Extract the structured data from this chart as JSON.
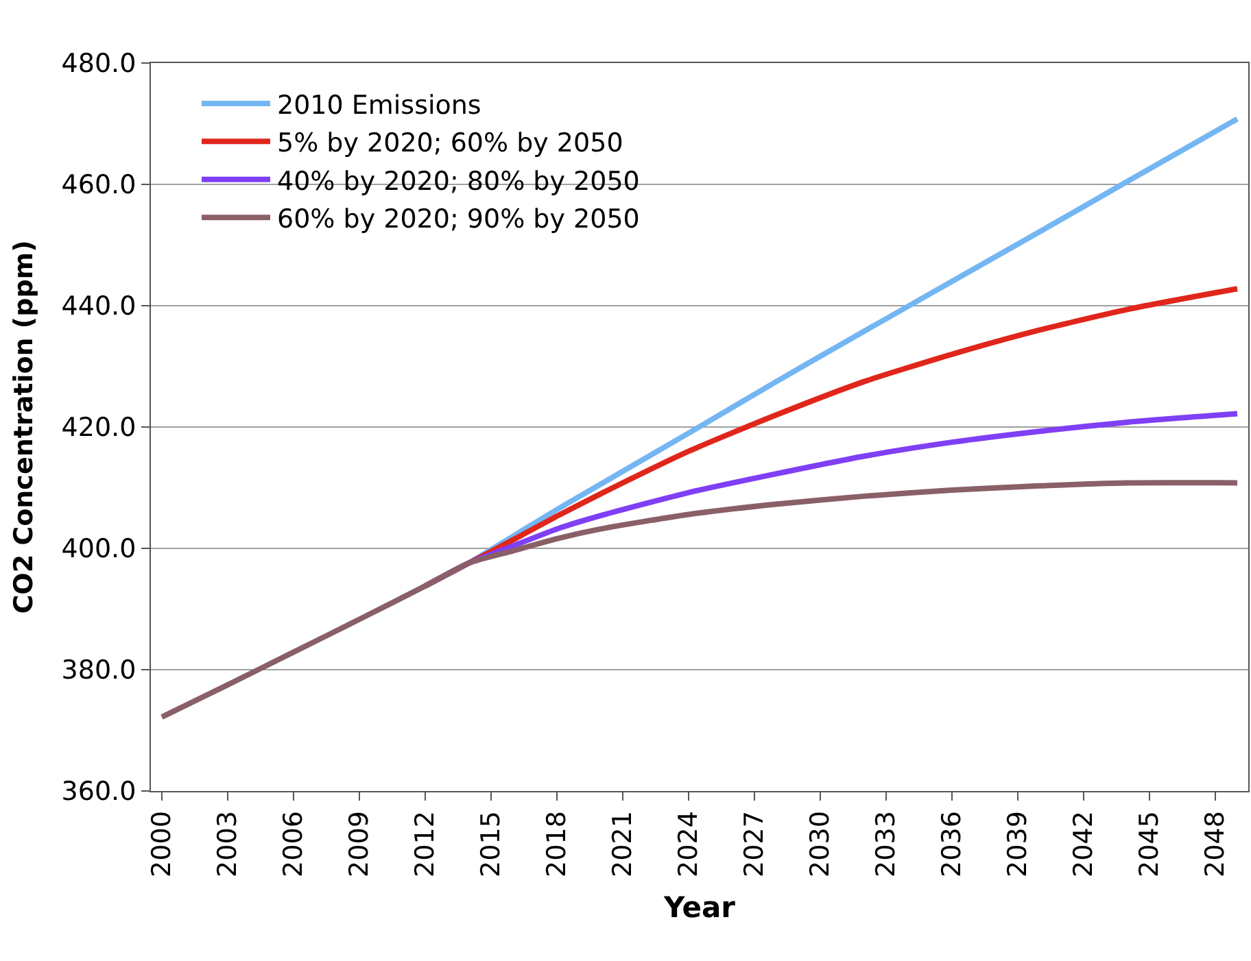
{
  "chart_data": {
    "type": "line",
    "xlabel": "Year",
    "ylabel": "CO2 Concentration (ppm)",
    "x": [
      2000,
      2003,
      2006,
      2009,
      2012,
      2014,
      2016,
      2018,
      2020,
      2024,
      2028,
      2032,
      2036,
      2040,
      2044,
      2049
    ],
    "xlim": [
      1999.5,
      2049.5
    ],
    "xticks": [
      2000,
      2003,
      2006,
      2009,
      2012,
      2015,
      2018,
      2021,
      2024,
      2027,
      2030,
      2033,
      2036,
      2039,
      2042,
      2045,
      2048
    ],
    "ylim": [
      360,
      480
    ],
    "yticks": [
      {
        "value": 360,
        "label": "360.0"
      },
      {
        "value": 380,
        "label": "380.0"
      },
      {
        "value": 400,
        "label": "400.0"
      },
      {
        "value": 420,
        "label": "420.0"
      },
      {
        "value": 440,
        "label": "440.0"
      },
      {
        "value": 460,
        "label": "460.0"
      },
      {
        "value": 480,
        "label": "480.0"
      }
    ],
    "grid": "y",
    "legend": "top left",
    "line_style": "solid",
    "series": [
      {
        "name": "2010 Emissions",
        "color": "#74b6f2",
        "values": [
          null,
          null,
          null,
          null,
          393.8,
          397.6,
          402.0,
          406.4,
          410.6,
          419.0,
          427.5,
          435.8,
          444.0,
          452.2,
          460.5,
          470.8
        ]
      },
      {
        "name": "5% by 2020; 60% by 2050",
        "color": "#e0261b",
        "values": [
          null,
          null,
          null,
          null,
          393.8,
          397.6,
          401.4,
          405.3,
          409.0,
          416.0,
          422.0,
          427.5,
          432.0,
          436.0,
          439.4,
          442.8
        ]
      },
      {
        "name": "40% by 2020; 80% by 2050",
        "color": "#7f3ff5",
        "values": [
          null,
          null,
          null,
          null,
          393.8,
          397.6,
          400.4,
          403.2,
          405.4,
          409.2,
          412.3,
          415.2,
          417.5,
          419.3,
          420.8,
          422.2
        ]
      },
      {
        "name": "60% by 2020; 90% by 2050",
        "color": "#8a5f68",
        "values": [
          372.2,
          377.5,
          382.9,
          388.3,
          393.8,
          397.6,
          399.6,
          401.6,
          403.2,
          405.6,
          407.3,
          408.6,
          409.6,
          410.3,
          410.8,
          410.8
        ]
      }
    ]
  }
}
